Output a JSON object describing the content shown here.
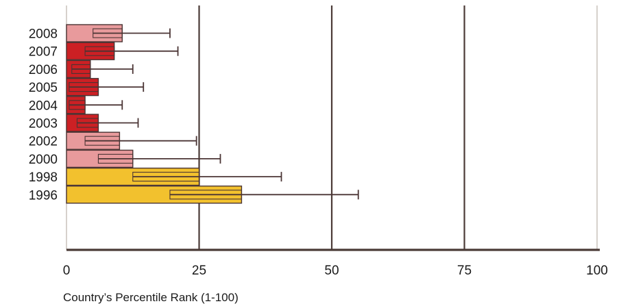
{
  "chart_data": {
    "type": "bar",
    "orientation": "horizontal",
    "title": "",
    "xlabel": "Country’s Percentile Rank (1-100)",
    "ylabel": "",
    "xlim": [
      0,
      100
    ],
    "xticks": [
      "0",
      "25",
      "50",
      "75",
      "100"
    ],
    "grid": true,
    "categories": [
      "2008",
      "2007",
      "2006",
      "2005",
      "2004",
      "2003",
      "2002",
      "2000",
      "1998",
      "1996"
    ],
    "values": [
      10.5,
      9,
      4.5,
      6,
      3.5,
      6,
      10,
      12.5,
      25,
      33
    ],
    "error_low": [
      5,
      3.5,
      1,
      0.5,
      0.5,
      2,
      3.5,
      6,
      12.5,
      19.5
    ],
    "error_high": [
      19.5,
      21,
      12.5,
      14.5,
      10.5,
      13.5,
      24.5,
      29,
      40.5,
      55
    ],
    "band_colors": [
      "#e89a9c",
      "#cc2024",
      "#cc2024",
      "#cc2024",
      "#cc2024",
      "#cc2024",
      "#e89a9c",
      "#e89a9c",
      "#f2c12e",
      "#f2c12e"
    ],
    "legend": "none"
  }
}
